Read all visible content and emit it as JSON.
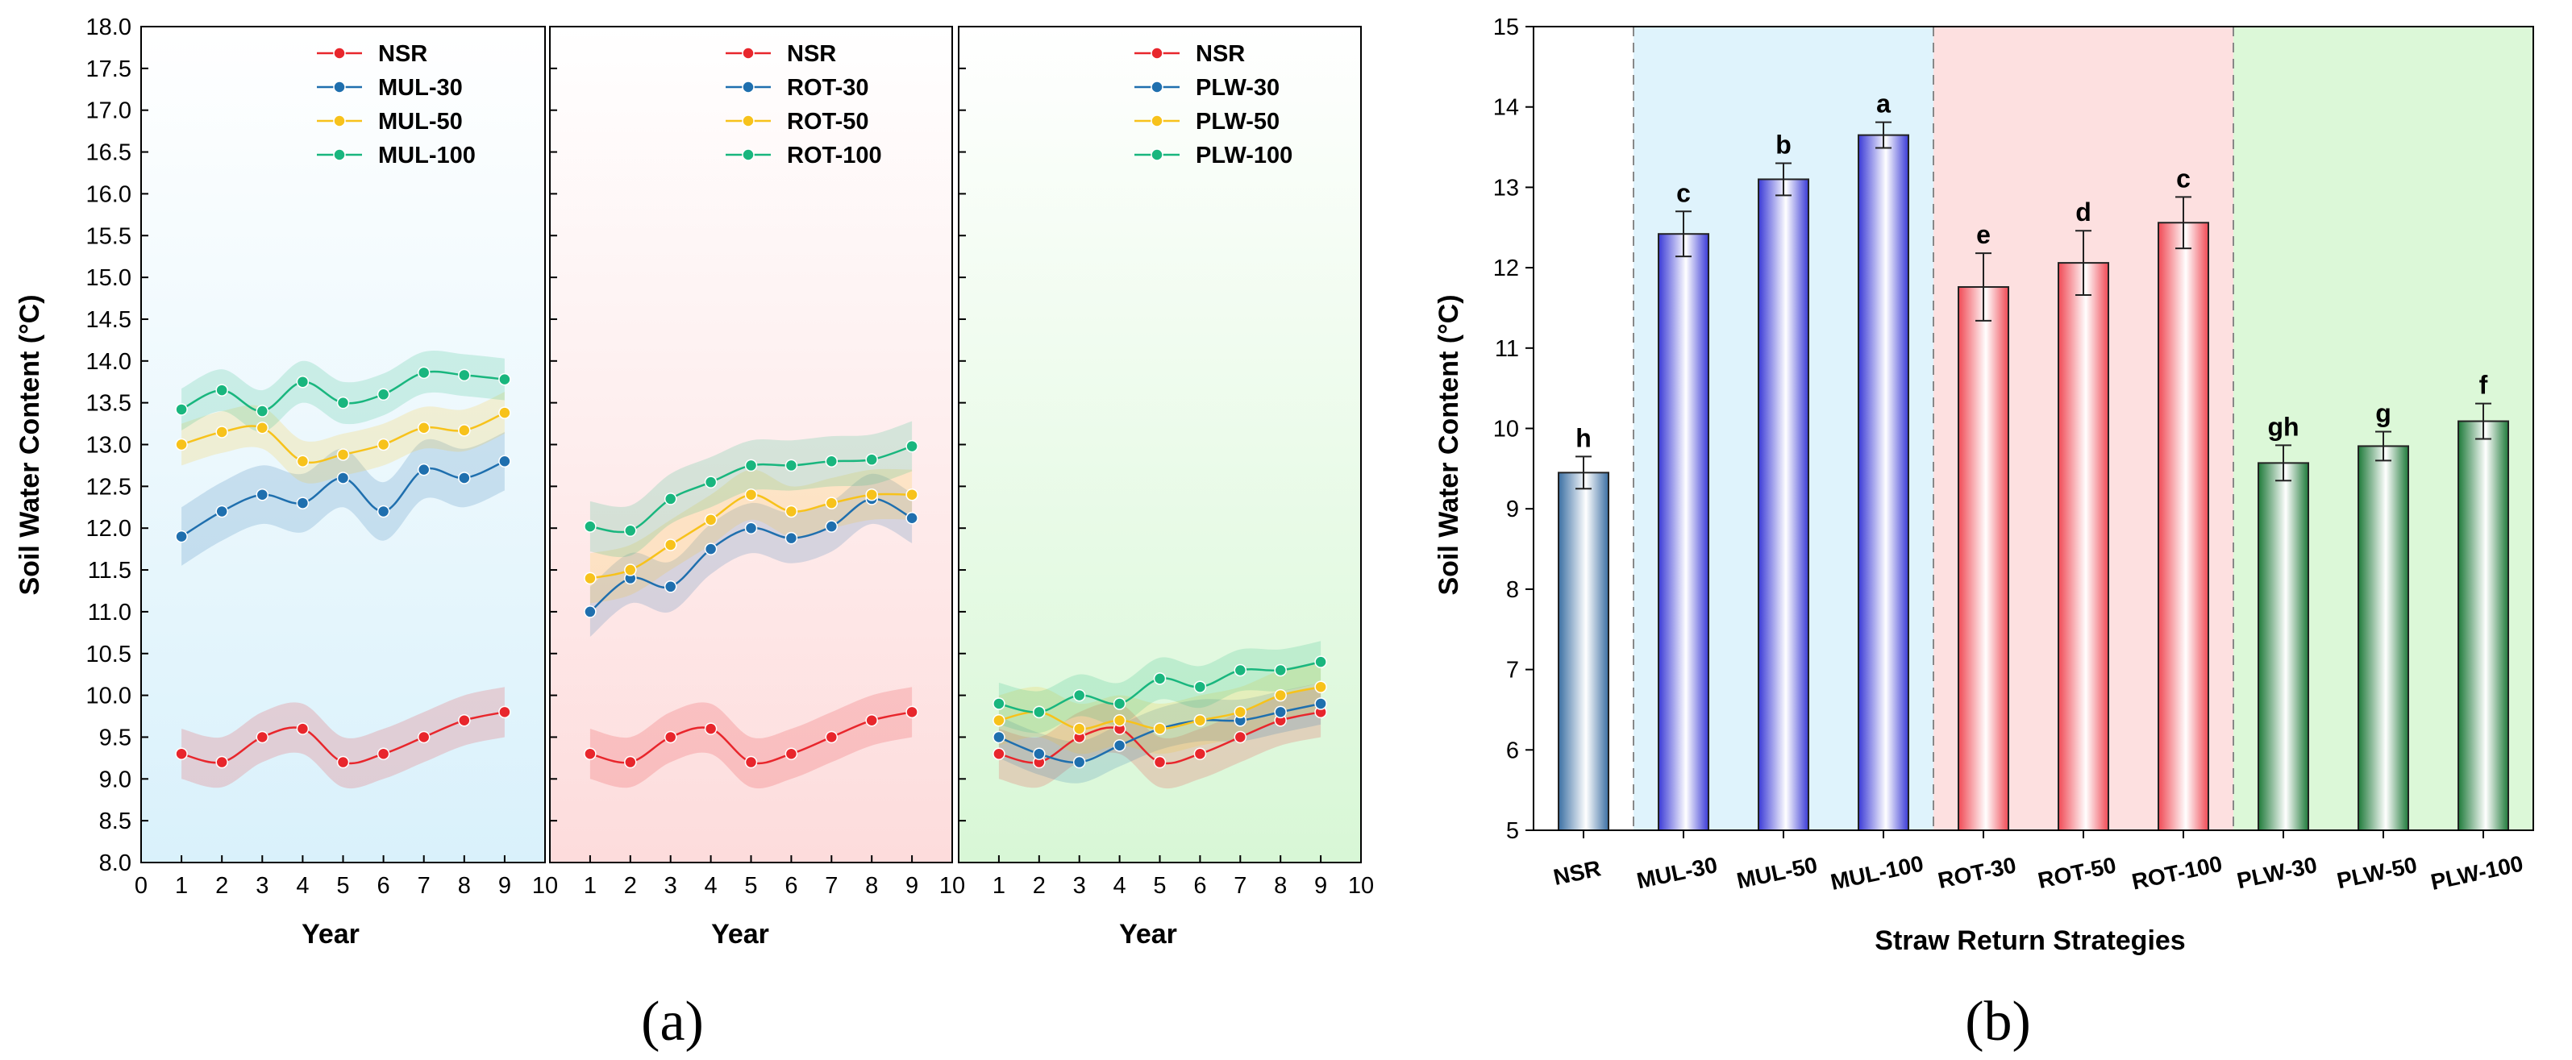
{
  "colors": {
    "nsr": "#e8262c",
    "r30": "#1f6fae",
    "r50": "#f7c21b",
    "r100": "#19b67e",
    "bg_mul": "#d9f1fb",
    "bg_rot": "#fddcdc",
    "bg_plw": "#d8f7d6"
  },
  "panel_a_label": "(a)",
  "panel_b_label": "(b)",
  "chart_data": [
    {
      "type": "line",
      "panel": "a-1",
      "xlabel": "Year",
      "ylabel": "Soil Water Content (°C)",
      "xlim": [
        0,
        10
      ],
      "ylim": [
        8.0,
        18.0
      ],
      "x_ticks": [
        "0",
        "1",
        "2",
        "3",
        "4",
        "5",
        "6",
        "7",
        "8",
        "9",
        "10"
      ],
      "y_ticks": [
        "8.0",
        "8.5",
        "9.0",
        "9.5",
        "10.0",
        "10.5",
        "11.0",
        "11.5",
        "12.0",
        "12.5",
        "13.0",
        "13.5",
        "14.0",
        "14.5",
        "15.0",
        "15.5",
        "16.0",
        "16.5",
        "17.0",
        "17.5",
        "18.0"
      ],
      "x": [
        1,
        2,
        3,
        4,
        5,
        6,
        7,
        8,
        9
      ],
      "legend": "top-right",
      "series": [
        {
          "name": "NSR",
          "key": "nsr",
          "values": [
            9.3,
            9.2,
            9.5,
            9.6,
            9.2,
            9.3,
            9.5,
            9.7,
            9.8
          ],
          "band": 0.3
        },
        {
          "name": "MUL-30",
          "key": "r30",
          "values": [
            11.9,
            12.2,
            12.4,
            12.3,
            12.6,
            12.2,
            12.7,
            12.6,
            12.8
          ],
          "band": 0.35
        },
        {
          "name": "MUL-50",
          "key": "r50",
          "values": [
            13.0,
            13.15,
            13.2,
            12.8,
            12.88,
            13.0,
            13.2,
            13.17,
            13.38
          ],
          "band": 0.25
        },
        {
          "name": "MUL-100",
          "key": "r100",
          "values": [
            13.42,
            13.65,
            13.4,
            13.75,
            13.5,
            13.6,
            13.86,
            13.83,
            13.78
          ],
          "band": 0.25
        }
      ]
    },
    {
      "type": "line",
      "panel": "a-2",
      "xlabel": "Year",
      "xlim": [
        0,
        10
      ],
      "ylim": [
        8.0,
        18.0
      ],
      "x_ticks": [
        "1",
        "2",
        "3",
        "4",
        "5",
        "6",
        "7",
        "8",
        "9",
        "10"
      ],
      "x": [
        1,
        2,
        3,
        4,
        5,
        6,
        7,
        8,
        9
      ],
      "legend": "top-right",
      "series": [
        {
          "name": "NSR",
          "key": "nsr",
          "values": [
            9.3,
            9.2,
            9.5,
            9.6,
            9.2,
            9.3,
            9.5,
            9.7,
            9.8
          ],
          "band": 0.3
        },
        {
          "name": "ROT-30",
          "key": "r30",
          "values": [
            11.0,
            11.4,
            11.3,
            11.75,
            12.0,
            11.88,
            12.02,
            12.35,
            12.12
          ],
          "band": 0.3
        },
        {
          "name": "ROT-50",
          "key": "r50",
          "values": [
            11.4,
            11.5,
            11.8,
            12.1,
            12.4,
            12.2,
            12.3,
            12.4,
            12.4
          ],
          "band": 0.3
        },
        {
          "name": "ROT-100",
          "key": "r100",
          "values": [
            12.02,
            11.97,
            12.35,
            12.55,
            12.75,
            12.75,
            12.8,
            12.82,
            12.98
          ],
          "band": 0.3
        }
      ]
    },
    {
      "type": "line",
      "panel": "a-3",
      "xlabel": "Year",
      "xlim": [
        0,
        10
      ],
      "ylim": [
        8.0,
        18.0
      ],
      "x_ticks": [
        "1",
        "2",
        "3",
        "4",
        "5",
        "6",
        "7",
        "8",
        "9",
        "10"
      ],
      "x": [
        1,
        2,
        3,
        4,
        5,
        6,
        7,
        8,
        9
      ],
      "legend": "top-right",
      "series": [
        {
          "name": "NSR",
          "key": "nsr",
          "values": [
            9.3,
            9.2,
            9.5,
            9.6,
            9.2,
            9.3,
            9.5,
            9.7,
            9.8
          ],
          "band": 0.3
        },
        {
          "name": "PLW-30",
          "key": "r30",
          "values": [
            9.5,
            9.3,
            9.2,
            9.4,
            9.6,
            9.7,
            9.7,
            9.8,
            9.9
          ],
          "band": 0.25
        },
        {
          "name": "PLW-50",
          "key": "r50",
          "values": [
            9.7,
            9.8,
            9.6,
            9.7,
            9.6,
            9.7,
            9.8,
            10.0,
            10.1
          ],
          "band": 0.3
        },
        {
          "name": "PLW-100",
          "key": "r100",
          "values": [
            9.9,
            9.8,
            10.0,
            9.9,
            10.2,
            10.1,
            10.3,
            10.3,
            10.4
          ],
          "band": 0.25
        }
      ]
    },
    {
      "type": "bar",
      "panel": "b",
      "xlabel": "Straw Return Strategies",
      "ylabel": "Soil Water Content (°C)",
      "ylim": [
        5,
        15
      ],
      "y_ticks": [
        "5",
        "6",
        "7",
        "8",
        "9",
        "10",
        "11",
        "12",
        "13",
        "14",
        "15"
      ],
      "categories": [
        "NSR",
        "MUL-30",
        "MUL-50",
        "MUL-100",
        "ROT-30",
        "ROT-50",
        "ROT-100",
        "PLW-30",
        "PLW-50",
        "PLW-100"
      ],
      "values": [
        9.45,
        12.42,
        13.1,
        13.65,
        11.76,
        12.06,
        12.56,
        9.57,
        9.78,
        10.09
      ],
      "errors": [
        0.2,
        0.28,
        0.2,
        0.16,
        0.42,
        0.4,
        0.32,
        0.22,
        0.18,
        0.22
      ],
      "labels": [
        "h",
        "c",
        "b",
        "a",
        "e",
        "d",
        "c",
        "gh",
        "g",
        "f"
      ],
      "color_keys": [
        "r30",
        "blue",
        "blue",
        "blue",
        "red",
        "red",
        "red",
        "green",
        "green",
        "green"
      ],
      "groups": [
        "",
        "MUL",
        "ROT",
        "PLW"
      ]
    }
  ]
}
